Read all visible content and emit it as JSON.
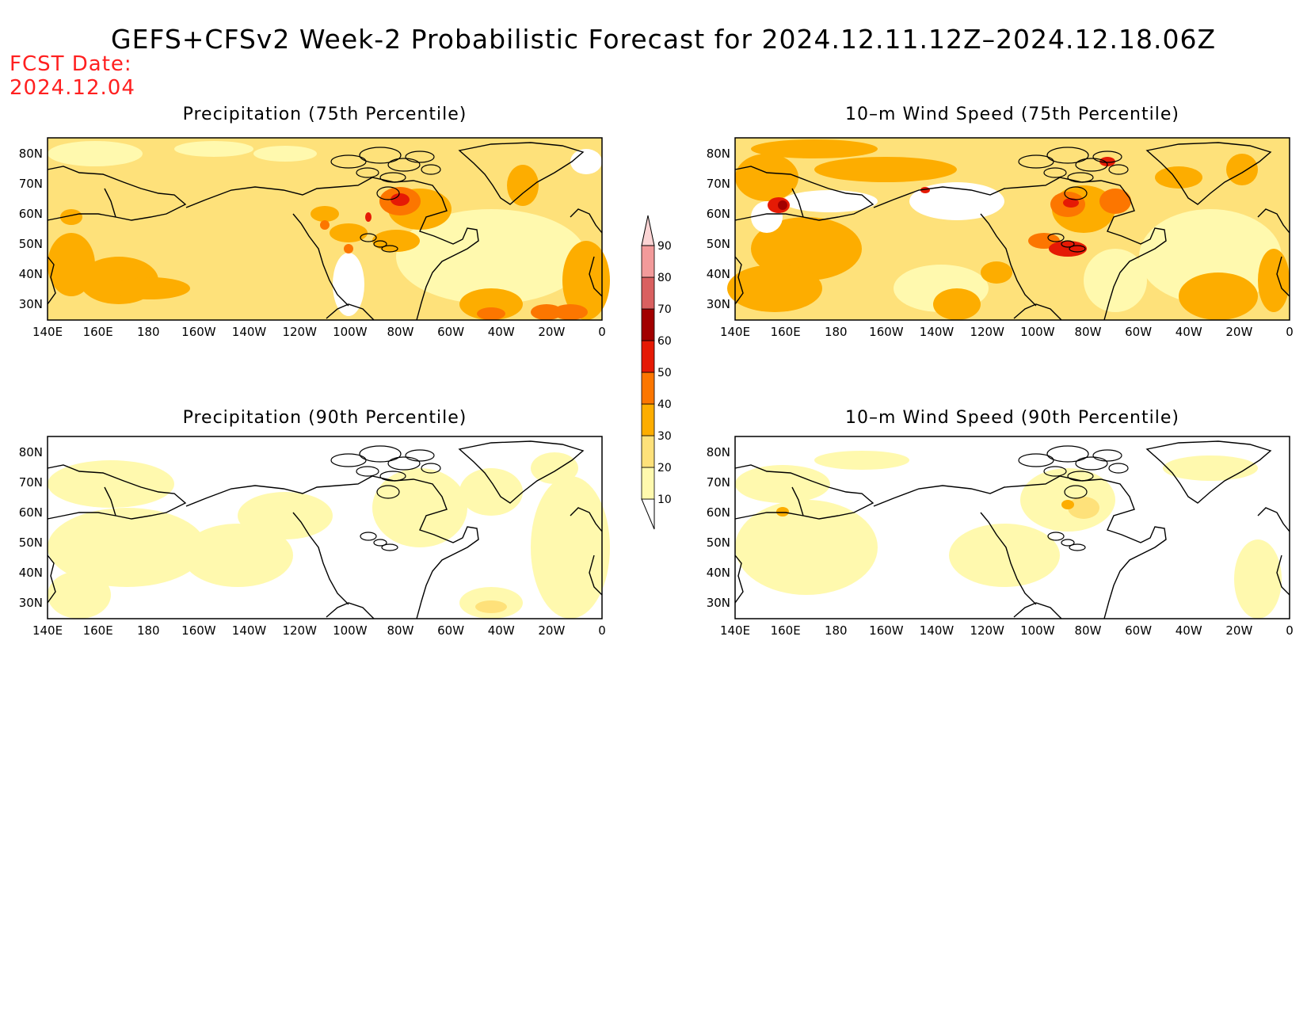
{
  "title": "GEFS+CFSv2 Week-2 Probabilistic Forecast for 2024.12.11.12Z–2024.12.18.06Z",
  "fcst_label": "FCST Date:",
  "fcst_date": "2024.12.04",
  "lat_ticks": [
    "80N",
    "70N",
    "60N",
    "50N",
    "40N",
    "30N"
  ],
  "lon_ticks": [
    "140E",
    "160E",
    "180",
    "160W",
    "140W",
    "120W",
    "100W",
    "80W",
    "60W",
    "40W",
    "20W",
    "0"
  ],
  "panels": [
    {
      "id": "precip75",
      "title": "Precipitation (75th Percentile)"
    },
    {
      "id": "wind75",
      "title": "10–m Wind Speed (75th Percentile)"
    },
    {
      "id": "precip90",
      "title": "Precipitation (90th Percentile)"
    },
    {
      "id": "wind90",
      "title": "10–m Wind Speed (90th Percentile)"
    }
  ],
  "colorbar": {
    "levels": [
      "10",
      "20",
      "30",
      "40",
      "50",
      "60",
      "70",
      "80",
      "90"
    ],
    "colors": [
      "#fff9ae",
      "#fee17a",
      "#fdad00",
      "#fc7600",
      "#e51a05",
      "#a20000",
      "#d96060",
      "#f29a9a",
      "#fbd4d4"
    ]
  },
  "shading_colors": {
    "light": "#fff9ae",
    "mid": "#fee17a",
    "orange": "#fdad00",
    "dark_orange": "#fc7600",
    "red": "#e51a05"
  }
}
